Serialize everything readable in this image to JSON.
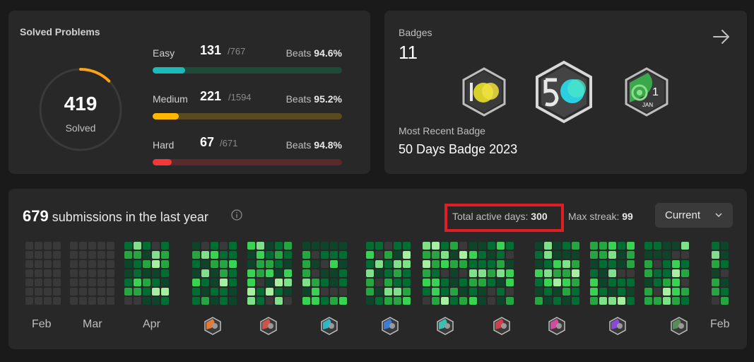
{
  "solved": {
    "title": "Solved Problems",
    "total": "419",
    "total_label": "Solved",
    "progress": 0.0,
    "difficulties": [
      {
        "label": "Easy",
        "count": "131",
        "total": "/767",
        "beats_label": "Beats",
        "beats": "94.6%",
        "solved": 131,
        "max": 767,
        "color": "#1cbaba",
        "track": "#1e4a38"
      },
      {
        "label": "Medium",
        "count": "221",
        "total": "/1594",
        "beats_label": "Beats",
        "beats": "95.2%",
        "solved": 221,
        "max": 1594,
        "color": "#ffb700",
        "track": "#5a4a20"
      },
      {
        "label": "Hard",
        "count": "67",
        "total": "/671",
        "beats_label": "Beats",
        "beats": "94.8%",
        "solved": 67,
        "max": 671,
        "color": "#f63737",
        "track": "#5a2a2a"
      }
    ],
    "ring_fraction": 0.125,
    "ring_color": "#ffa116"
  },
  "badges": {
    "label": "Badges",
    "count": "11",
    "recent_label": "Most Recent Badge",
    "recent_name": "50 Days Badge 2023",
    "icons": [
      "100-days-badge-icon",
      "50-days-badge-icon",
      "jan-badge-icon"
    ]
  },
  "activity": {
    "count": "679",
    "title_rest": "submissions in the last year",
    "active_label": "Total active days:",
    "active_value": "300",
    "streak_label": "Max streak:",
    "streak_value": "99",
    "dropdown_value": "Current",
    "months": [
      "Feb",
      "Mar",
      "Apr",
      "Feb"
    ],
    "level_colors": [
      "#393939",
      "#0e4429",
      "#006d32",
      "#26a641",
      "#39d353",
      "#7fe08a",
      "#a6eea0"
    ],
    "mini_badge_colors": [
      "#e07b3a",
      "#d0524a",
      "#2bb8c8",
      "#3e7bd6",
      "#38c0b0",
      "#d0404a",
      "#d24aa0",
      "#8a4ad8",
      "#5a8a5a"
    ]
  }
}
